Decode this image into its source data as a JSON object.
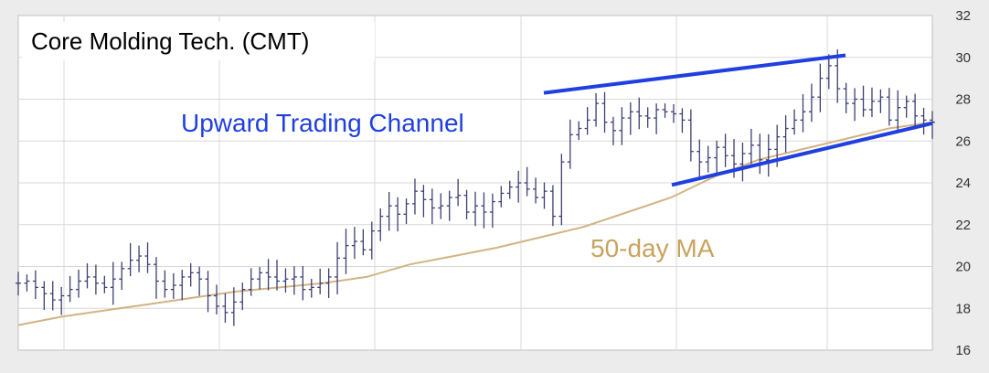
{
  "chart_data": {
    "type": "line",
    "title": "Core Molding Tech. (CMT)",
    "y_axis": {
      "ylim": [
        16,
        32
      ],
      "ticks": [
        16,
        18,
        20,
        22,
        24,
        26,
        28,
        30,
        32
      ],
      "tick_labels": [
        "16",
        "18",
        "20",
        "22",
        "24",
        "26",
        "28",
        "30",
        "32"
      ],
      "side": "right"
    },
    "grid": true,
    "price_closes": [
      19.2,
      19.3,
      19.0,
      18.7,
      18.4,
      18.6,
      18.9,
      19.3,
      19.5,
      19.2,
      19.0,
      19.4,
      19.9,
      20.3,
      20.5,
      20.1,
      19.3,
      18.9,
      19.1,
      19.5,
      19.7,
      19.4,
      18.6,
      18.1,
      17.8,
      18.3,
      18.9,
      19.4,
      19.7,
      19.5,
      19.3,
      19.4,
      19.5,
      18.9,
      19.0,
      19.2,
      19.5,
      20.4,
      21.0,
      21.2,
      20.8,
      21.7,
      22.4,
      22.9,
      22.5,
      23.0,
      23.6,
      23.2,
      22.8,
      22.9,
      23.3,
      23.4,
      22.6,
      22.9,
      22.6,
      23.1,
      23.5,
      23.8,
      24.0,
      23.7,
      23.3,
      23.6,
      22.4,
      25.0,
      26.3,
      26.6,
      27.0,
      27.8,
      26.9,
      26.5,
      27.1,
      27.4,
      27.2,
      27.1,
      27.5,
      27.4,
      27.3,
      27.0,
      25.5,
      25.0,
      25.2,
      25.7,
      25.3,
      24.9,
      25.4,
      25.8,
      25.1,
      25.6,
      26.2,
      26.6,
      27.0,
      27.4,
      28.1,
      29.0,
      29.6,
      28.5,
      27.8,
      28.0,
      27.5,
      27.9,
      28.1,
      27.0,
      27.6,
      27.9,
      27.2,
      27.0,
      26.9
    ],
    "ma_50_day": [
      17.2,
      17.6,
      17.9,
      18.2,
      18.5,
      18.8,
      19.0,
      19.2,
      19.5,
      20.1,
      20.5,
      20.9,
      21.4,
      21.9,
      22.6,
      23.3,
      24.3,
      25.1,
      25.6,
      26.1,
      26.6,
      26.9
    ],
    "series": [
      {
        "name": "50-day MA",
        "color": "#d2b482"
      }
    ],
    "trendlines": [
      {
        "name": "channel-upper",
        "points": [
          [
            0.575,
            28.3
          ],
          [
            0.905,
            30.1
          ]
        ]
      },
      {
        "name": "channel-lower",
        "points": [
          [
            0.715,
            23.9
          ],
          [
            1.0,
            26.85
          ]
        ]
      }
    ],
    "annotations": [
      {
        "text": "Upward Trading Channel",
        "color": "#1f3fe0"
      },
      {
        "text": "50-day MA",
        "color": "#c8a35e"
      }
    ],
    "colors": {
      "price_bars": "#3d3f73",
      "ma_line": "#d2b482",
      "trendline": "#1f3fe0",
      "grid": "#d8d8d8",
      "plot_bg": "#ffffff"
    }
  }
}
